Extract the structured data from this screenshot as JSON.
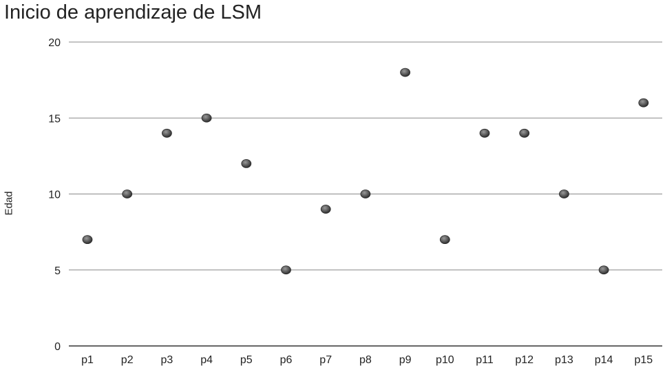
{
  "chart_data": {
    "type": "scatter",
    "title": "Inicio de aprendizaje de LSM",
    "xlabel": "",
    "ylabel": "Edad",
    "categories": [
      "p1",
      "p2",
      "p3",
      "p4",
      "p5",
      "p6",
      "p7",
      "p8",
      "p9",
      "p10",
      "p11",
      "p12",
      "p13",
      "p14",
      "p15"
    ],
    "values": [
      7,
      10,
      14,
      15,
      12,
      5,
      9,
      10,
      18,
      7,
      14,
      14,
      10,
      5,
      16
    ],
    "ylim": [
      0,
      20
    ],
    "yticks": [
      "0",
      "5",
      "10",
      "15",
      "20"
    ],
    "grid": true,
    "colors": {
      "point": "#5a5a5a",
      "grid": "#888888",
      "axis": "#333333"
    }
  }
}
